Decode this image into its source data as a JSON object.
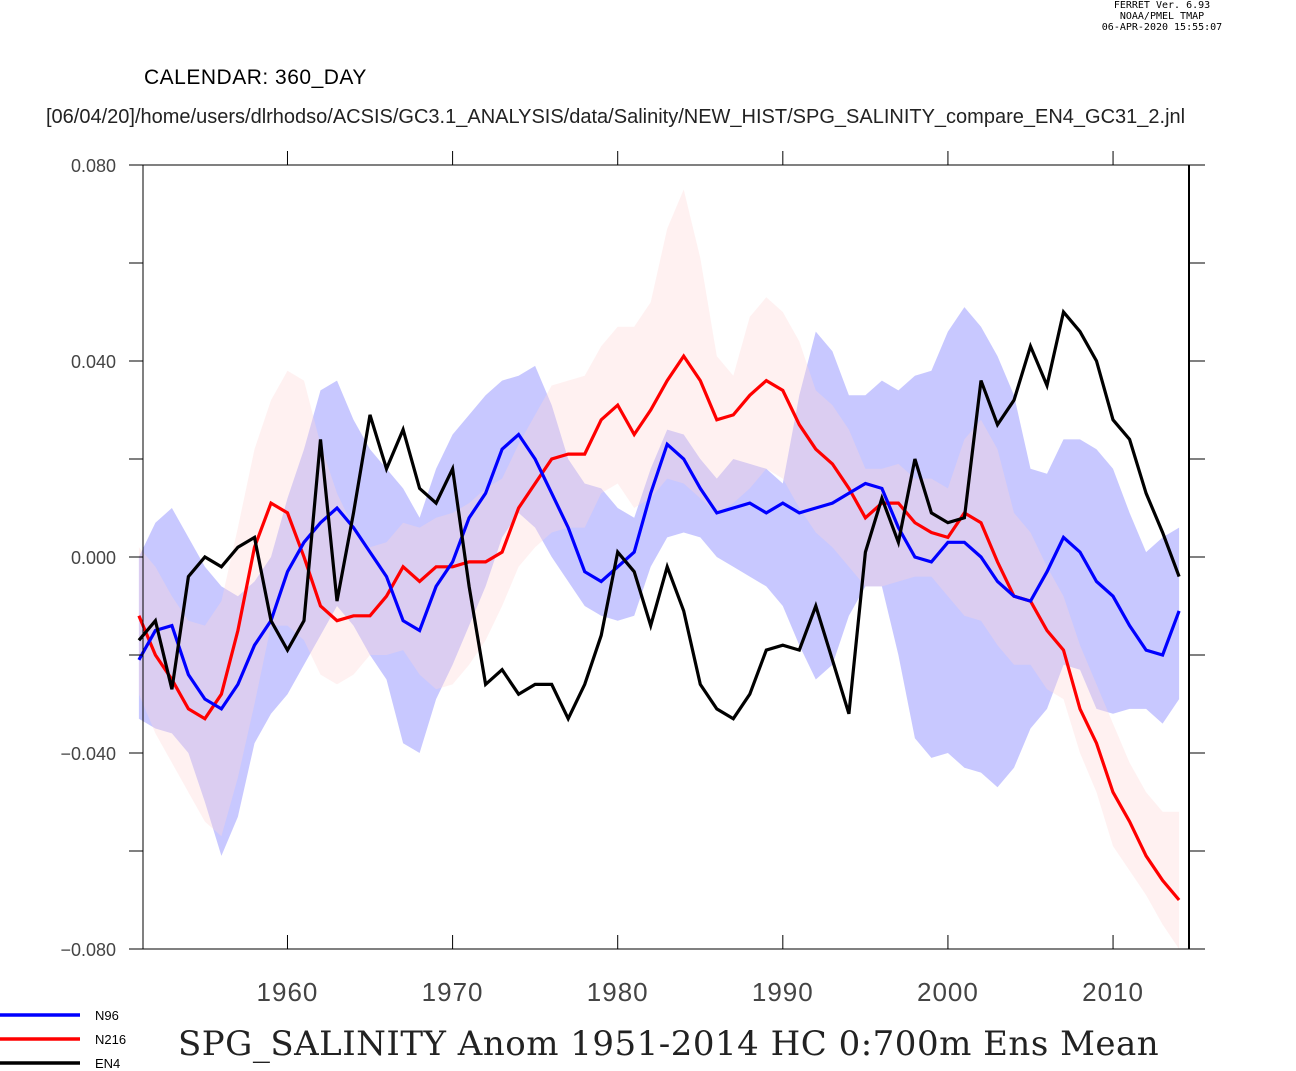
{
  "header": {
    "ferret_version": "FERRET Ver. 6.93",
    "ferret_org": "NOAA/PMEL TMAP",
    "ferret_timestamp": "06-APR-2020 15:55:07",
    "calendar": "CALENDAR: 360_DAY",
    "path": "[06/04/20]/home/users/dlrhodso/ACSIS/GC3.1_ANALYSIS/data/Salinity/NEW_HIST/SPG_SALINITY_compare_EN4_GC31_2.jnl"
  },
  "chart_data": {
    "type": "line",
    "title": "SPG_SALINITY Anom 1951-2014 HC 0:700m Ens Mean",
    "xlabel": "",
    "ylabel": "",
    "xlim": [
      1951.25,
      2014.6
    ],
    "ylim": [
      -0.08,
      0.08
    ],
    "x_ticks": [
      1960,
      1970,
      1980,
      1990,
      2000,
      2010
    ],
    "y_ticks": [
      -0.08,
      -0.04,
      0.0,
      0.04,
      0.08
    ],
    "y_tick_labels": [
      "−0.080",
      "−0.040",
      "0.000",
      "0.040",
      "0.080"
    ],
    "grid": false,
    "legend_position": "bottom-left",
    "x": [
      1951,
      1952,
      1953,
      1954,
      1955,
      1956,
      1957,
      1958,
      1959,
      1960,
      1961,
      1962,
      1963,
      1964,
      1965,
      1966,
      1967,
      1968,
      1969,
      1970,
      1971,
      1972,
      1973,
      1974,
      1975,
      1976,
      1977,
      1978,
      1979,
      1980,
      1981,
      1982,
      1983,
      1984,
      1985,
      1986,
      1987,
      1988,
      1989,
      1990,
      1991,
      1992,
      1993,
      1994,
      1995,
      1996,
      1997,
      1998,
      1999,
      2000,
      2001,
      2002,
      2003,
      2004,
      2005,
      2006,
      2007,
      2008,
      2009,
      2010,
      2011,
      2012,
      2013,
      2014
    ],
    "series": [
      {
        "name": "N96",
        "color": "#0000ff",
        "values": [
          -0.021,
          -0.015,
          -0.014,
          -0.024,
          -0.029,
          -0.031,
          -0.026,
          -0.018,
          -0.013,
          -0.003,
          0.003,
          0.007,
          0.01,
          0.006,
          0.001,
          -0.004,
          -0.013,
          -0.015,
          -0.006,
          -0.001,
          0.008,
          0.013,
          0.022,
          0.025,
          0.02,
          0.013,
          0.006,
          -0.003,
          -0.005,
          -0.002,
          0.001,
          0.013,
          0.023,
          0.02,
          0.014,
          0.009,
          0.01,
          0.011,
          0.009,
          0.011,
          0.009,
          0.01,
          0.011,
          0.013,
          0.015,
          0.014,
          0.006,
          0.0,
          -0.001,
          0.003,
          0.003,
          0.0,
          -0.005,
          -0.008,
          -0.009,
          -0.003,
          0.004,
          0.001,
          -0.005,
          -0.008,
          -0.014,
          -0.019,
          -0.02,
          -0.011
        ],
        "band_upper": [
          0.0,
          0.007,
          0.01,
          0.004,
          -0.002,
          -0.006,
          -0.008,
          -0.005,
          0.0,
          0.012,
          0.022,
          0.034,
          0.036,
          0.028,
          0.022,
          0.018,
          0.014,
          0.008,
          0.018,
          0.025,
          0.029,
          0.033,
          0.036,
          0.037,
          0.039,
          0.031,
          0.02,
          0.015,
          0.014,
          0.01,
          0.008,
          0.018,
          0.026,
          0.025,
          0.02,
          0.016,
          0.02,
          0.019,
          0.018,
          0.015,
          0.033,
          0.046,
          0.042,
          0.033,
          0.033,
          0.036,
          0.034,
          0.037,
          0.038,
          0.046,
          0.051,
          0.047,
          0.041,
          0.033,
          0.018,
          0.017,
          0.024,
          0.024,
          0.022,
          0.018,
          0.009,
          0.001,
          0.004,
          0.006
        ],
        "band_lower": [
          -0.033,
          -0.035,
          -0.036,
          -0.04,
          -0.05,
          -0.061,
          -0.053,
          -0.038,
          -0.032,
          -0.028,
          -0.022,
          -0.016,
          -0.01,
          -0.014,
          -0.02,
          -0.025,
          -0.038,
          -0.04,
          -0.029,
          -0.022,
          -0.014,
          -0.006,
          0.004,
          0.009,
          0.006,
          0.0,
          -0.005,
          -0.01,
          -0.012,
          -0.013,
          -0.012,
          -0.002,
          0.004,
          0.005,
          0.004,
          0.0,
          -0.002,
          -0.004,
          -0.006,
          -0.01,
          -0.018,
          -0.025,
          -0.022,
          -0.012,
          -0.006,
          -0.006,
          -0.02,
          -0.037,
          -0.041,
          -0.04,
          -0.043,
          -0.044,
          -0.047,
          -0.043,
          -0.035,
          -0.031,
          -0.022,
          -0.023,
          -0.031,
          -0.032,
          -0.031,
          -0.031,
          -0.034,
          -0.029
        ]
      },
      {
        "name": "N216",
        "color": "#ff0000",
        "values": [
          -0.012,
          -0.02,
          -0.025,
          -0.031,
          -0.033,
          -0.028,
          -0.015,
          0.002,
          0.011,
          0.009,
          0.0,
          -0.01,
          -0.013,
          -0.012,
          -0.012,
          -0.008,
          -0.002,
          -0.005,
          -0.002,
          -0.002,
          -0.001,
          -0.001,
          0.001,
          0.01,
          0.015,
          0.02,
          0.021,
          0.021,
          0.028,
          0.031,
          0.025,
          0.03,
          0.036,
          0.041,
          0.036,
          0.028,
          0.029,
          0.033,
          0.036,
          0.034,
          0.027,
          0.022,
          0.019,
          0.014,
          0.008,
          0.011,
          0.011,
          0.007,
          0.005,
          0.004,
          0.009,
          0.007,
          -0.001,
          -0.008,
          -0.009,
          -0.015,
          -0.019,
          -0.031,
          -0.038,
          -0.048,
          -0.054,
          -0.061,
          -0.066,
          -0.07
        ],
        "band_upper": [
          0.002,
          -0.002,
          -0.008,
          -0.013,
          -0.014,
          -0.009,
          0.006,
          0.022,
          0.032,
          0.038,
          0.036,
          0.023,
          0.013,
          0.006,
          0.002,
          0.003,
          0.007,
          0.006,
          0.008,
          0.009,
          0.011,
          0.014,
          0.016,
          0.023,
          0.029,
          0.035,
          0.036,
          0.037,
          0.043,
          0.047,
          0.047,
          0.052,
          0.067,
          0.075,
          0.061,
          0.041,
          0.037,
          0.049,
          0.053,
          0.05,
          0.044,
          0.034,
          0.031,
          0.026,
          0.018,
          0.018,
          0.019,
          0.016,
          0.016,
          0.014,
          0.024,
          0.028,
          0.022,
          0.009,
          0.005,
          -0.002,
          -0.008,
          -0.018,
          -0.026,
          -0.034,
          -0.042,
          -0.048,
          -0.052,
          -0.052
        ],
        "band_lower": [
          -0.028,
          -0.036,
          -0.042,
          -0.048,
          -0.054,
          -0.057,
          -0.045,
          -0.03,
          -0.014,
          -0.014,
          -0.017,
          -0.024,
          -0.026,
          -0.024,
          -0.02,
          -0.02,
          -0.019,
          -0.024,
          -0.027,
          -0.026,
          -0.022,
          -0.017,
          -0.01,
          -0.002,
          0.002,
          0.005,
          0.006,
          0.006,
          0.013,
          0.015,
          0.01,
          0.012,
          0.016,
          0.015,
          0.012,
          0.009,
          0.011,
          0.014,
          0.018,
          0.016,
          0.01,
          0.005,
          0.002,
          -0.002,
          -0.006,
          -0.006,
          -0.005,
          -0.004,
          -0.004,
          -0.008,
          -0.012,
          -0.013,
          -0.018,
          -0.022,
          -0.022,
          -0.027,
          -0.029,
          -0.04,
          -0.048,
          -0.059,
          -0.064,
          -0.069,
          -0.075,
          -0.08
        ]
      },
      {
        "name": "EN4",
        "color": "#000000",
        "values": [
          -0.017,
          -0.013,
          -0.027,
          -0.004,
          0.0,
          -0.002,
          0.002,
          0.004,
          -0.013,
          -0.019,
          -0.013,
          0.024,
          -0.009,
          0.009,
          0.029,
          0.018,
          0.026,
          0.014,
          0.011,
          0.018,
          -0.006,
          -0.026,
          -0.023,
          -0.028,
          -0.026,
          -0.026,
          -0.033,
          -0.026,
          -0.016,
          0.001,
          -0.003,
          -0.014,
          -0.002,
          -0.011,
          -0.026,
          -0.031,
          -0.033,
          -0.028,
          -0.019,
          -0.018,
          -0.019,
          -0.01,
          -0.021,
          -0.032,
          0.001,
          0.012,
          0.003,
          0.02,
          0.009,
          0.007,
          0.008,
          0.036,
          0.027,
          0.032,
          0.043,
          0.035,
          0.05,
          0.046,
          0.04,
          0.028,
          0.024,
          0.013,
          0.005,
          -0.004
        ]
      }
    ]
  }
}
